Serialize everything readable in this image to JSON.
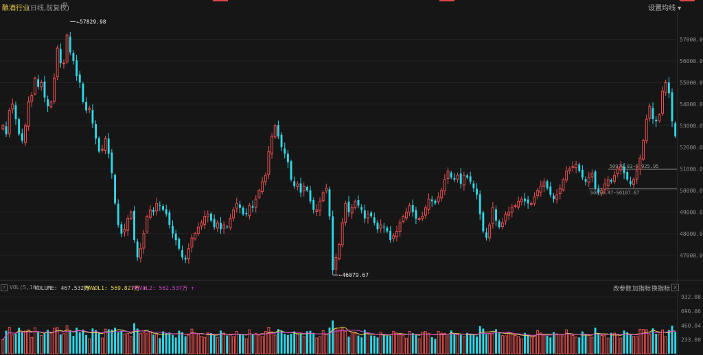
{
  "header": {
    "title": "酿酒行业",
    "subtitle": "(日线,前复权)",
    "ma_settings": "设置均线 ▾"
  },
  "colors": {
    "up": "#f05050",
    "down": "#2ed8e8",
    "ma1": "#e8d84a",
    "ma2": "#d040d0",
    "bg": "#161616"
  },
  "vol_panel": {
    "label": "VOL(5,10)",
    "volume": "VOLUME: 467.532万 ↓",
    "mavol1": "MAVOL1: 569.827万 ↓",
    "mavol2": "MAVOL2: 562.537万 ↑",
    "btn_params": "改参数",
    "btn_add": "加指标",
    "btn_switch": "换指标"
  },
  "chart_data": {
    "type": "candlestick",
    "y_ticks": [
      "57000.0",
      "56000.0",
      "55000.0",
      "54000.0",
      "53000.0",
      "52000.0",
      "51000.0",
      "50000.0",
      "49000.0",
      "48000.0",
      "47000.0"
    ],
    "vol_ticks": [
      "932.08",
      "696.06",
      "460.04",
      "233.00"
    ],
    "annotations": {
      "high": "57829.98",
      "low": "46079.67",
      "ref_line_1": "50979.83~50925.95",
      "ref_line_2": "50070.47~50107.67"
    },
    "ylim": [
      46500,
      58000
    ],
    "close": [
      53000,
      52600,
      53700,
      54000,
      53300,
      52600,
      52300,
      53000,
      54100,
      54400,
      55200,
      54800,
      55000,
      54300,
      53900,
      54100,
      55200,
      56600,
      55900,
      55900,
      57200,
      56400,
      56000,
      55300,
      55000,
      54100,
      53700,
      53800,
      53100,
      52400,
      51800,
      51900,
      52400,
      51700,
      50800,
      49400,
      48400,
      48000,
      48200,
      48700,
      49000,
      47700,
      46900,
      47300,
      48000,
      48800,
      49100,
      49000,
      49400,
      49300,
      49100,
      48900,
      48400,
      48000,
      47700,
      47300,
      46900,
      46800,
      47300,
      47800,
      48000,
      48300,
      48500,
      48800,
      48900,
      48600,
      48300,
      48500,
      48200,
      48400,
      48300,
      48700,
      49100,
      49400,
      49200,
      48900,
      48900,
      49300,
      49200,
      49600,
      50000,
      50400,
      50700,
      51800,
      52500,
      53000,
      52500,
      52000,
      51700,
      51300,
      50500,
      50200,
      50300,
      49900,
      50200,
      50000,
      49500,
      49100,
      49100,
      49500,
      49900,
      50100,
      48800,
      46300,
      46900,
      47500,
      48500,
      49400,
      49000,
      49200,
      49500,
      49300,
      49100,
      48700,
      48900,
      48800,
      48500,
      48200,
      48400,
      48300,
      48100,
      47700,
      47900,
      48100,
      48500,
      48800,
      49000,
      49300,
      49000,
      48700,
      48700,
      48800,
      49200,
      49600,
      49500,
      49400,
      49700,
      50000,
      50500,
      50900,
      50600,
      50500,
      50700,
      50300,
      50700,
      50600,
      50400,
      50100,
      49800,
      48900,
      48100,
      47800,
      48400,
      49200,
      48600,
      48300,
      48500,
      48900,
      49000,
      49200,
      49300,
      49500,
      49600,
      49500,
      49400,
      49400,
      49700,
      50000,
      50200,
      50400,
      50100,
      49800,
      49600,
      49800,
      50100,
      50500,
      50900,
      51000,
      51100,
      51200,
      50900,
      50600,
      50400,
      50600,
      50800,
      50100,
      49900,
      50000,
      50300,
      50500,
      50400,
      50700,
      51000,
      51100,
      50800,
      50500,
      50300,
      50500,
      50900,
      51500,
      52300,
      53300,
      53900,
      53300,
      53200,
      53500,
      54600,
      55000,
      54500,
      53200,
      52500
    ]
  }
}
